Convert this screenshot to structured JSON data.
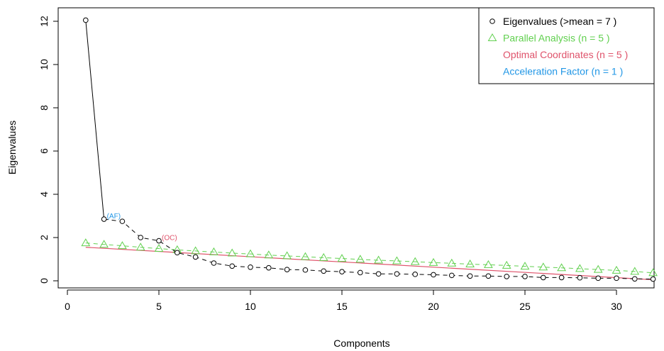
{
  "chart_data": {
    "type": "scatter",
    "xlabel": "Components",
    "ylabel": "Eigenvalues",
    "xlim": [
      0,
      32
    ],
    "ylim": [
      0,
      12
    ],
    "x_ticks": [
      "0",
      "5",
      "10",
      "15",
      "20",
      "25",
      "30"
    ],
    "y_ticks": [
      "0",
      "2",
      "4",
      "6",
      "8",
      "10",
      "12"
    ],
    "legend_position": "top-right",
    "legend": [
      {
        "text": "Eigenvalues (>mean  =  7 )",
        "color": "#000000",
        "marker": "circle"
      },
      {
        "text": "Parallel Analysis (n =  5 )",
        "color": "#61D04F",
        "marker": "triangle"
      },
      {
        "text": "Optimal Coordinates (n =  5 )",
        "color": "#DF536B",
        "marker": "none"
      },
      {
        "text": "Acceleration Factor (n =  1 )",
        "color": "#2297E6",
        "marker": "none"
      }
    ],
    "series": [
      {
        "name": "Eigenvalues",
        "color": "#000000",
        "x": [
          1,
          2,
          3,
          4,
          5,
          6,
          7,
          8,
          9,
          10,
          11,
          12,
          13,
          14,
          15,
          16,
          17,
          18,
          19,
          20,
          21,
          22,
          23,
          24,
          25,
          26,
          27,
          28,
          29,
          30,
          31,
          32
        ],
        "values": [
          12.05,
          2.85,
          2.75,
          2.0,
          1.85,
          1.3,
          1.1,
          0.82,
          0.68,
          0.63,
          0.6,
          0.52,
          0.5,
          0.45,
          0.42,
          0.38,
          0.32,
          0.32,
          0.3,
          0.28,
          0.25,
          0.22,
          0.22,
          0.2,
          0.2,
          0.15,
          0.15,
          0.14,
          0.12,
          0.12,
          0.09,
          0.08
        ]
      },
      {
        "name": "Parallel Analysis",
        "color": "#61D04F",
        "x": [
          1,
          2,
          3,
          4,
          5,
          6,
          7,
          8,
          9,
          10,
          11,
          12,
          13,
          14,
          15,
          16,
          17,
          18,
          19,
          20,
          21,
          22,
          23,
          24,
          25,
          26,
          27,
          28,
          29,
          30,
          31,
          32
        ],
        "values": [
          1.75,
          1.68,
          1.62,
          1.55,
          1.49,
          1.43,
          1.38,
          1.33,
          1.28,
          1.24,
          1.19,
          1.15,
          1.11,
          1.07,
          1.03,
          0.99,
          0.95,
          0.92,
          0.88,
          0.84,
          0.81,
          0.77,
          0.74,
          0.71,
          0.67,
          0.63,
          0.6,
          0.56,
          0.52,
          0.48,
          0.43,
          0.37
        ]
      },
      {
        "name": "Optimal Coordinates",
        "color": "#DF536B",
        "x": [
          1,
          32
        ],
        "values": [
          1.55,
          0.05
        ]
      }
    ],
    "annotations": [
      {
        "text": "(AF)",
        "x": 2,
        "y": 2.85,
        "color": "#2297E6"
      },
      {
        "text": "(OC)",
        "x": 5,
        "y": 1.85,
        "color": "#DF536B"
      }
    ]
  }
}
